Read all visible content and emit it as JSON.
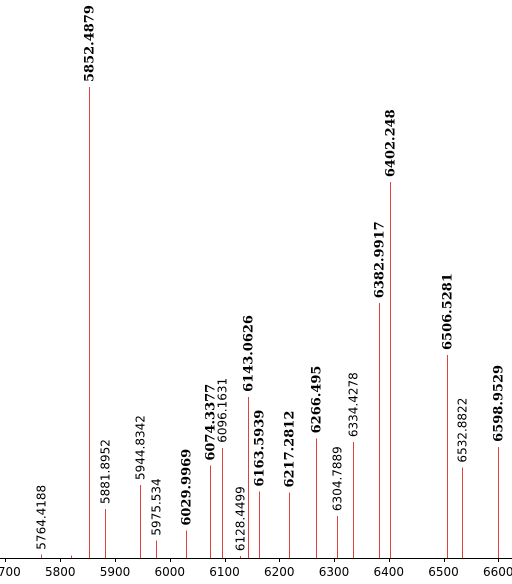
{
  "chart_data": {
    "type": "bar",
    "title": "",
    "xlabel": "",
    "ylabel": "",
    "xlim": [
      5690,
      6625
    ],
    "ylim": [
      0,
      1.0
    ],
    "x_ticks": [
      5700,
      5800,
      5900,
      6000,
      6100,
      6200,
      6300,
      6400,
      6500,
      6600
    ],
    "grid": false,
    "peaks": [
      {
        "x": 5764.4188,
        "label": "5764.4188",
        "y": 0.007,
        "bold": false
      },
      {
        "x": 5820.0,
        "label": "",
        "y": 0.005,
        "bold": false
      },
      {
        "x": 5852.4879,
        "label": "5852.4879",
        "y": 1.0,
        "bold": true
      },
      {
        "x": 5881.8952,
        "label": "5881.8952",
        "y": 0.104,
        "bold": false
      },
      {
        "x": 5944.8342,
        "label": "5944.8342",
        "y": 0.155,
        "bold": false
      },
      {
        "x": 5975.534,
        "label": "5975.534",
        "y": 0.037,
        "bold": false
      },
      {
        "x": 6029.9969,
        "label": "6029.9969",
        "y": 0.058,
        "bold": true
      },
      {
        "x": 6074.3377,
        "label": "6074.3377",
        "y": 0.196,
        "bold": true
      },
      {
        "x": 6096.1631,
        "label": "6096.1631",
        "y": 0.234,
        "bold": false
      },
      {
        "x": 6128.4499,
        "label": "6128.4499",
        "y": 0.004,
        "bold": false
      },
      {
        "x": 6143.0626,
        "label": "6143.0626",
        "y": 0.342,
        "bold": true
      },
      {
        "x": 6163.5939,
        "label": "6163.5939",
        "y": 0.141,
        "bold": true
      },
      {
        "x": 6217.2812,
        "label": "6217.2812",
        "y": 0.139,
        "bold": true
      },
      {
        "x": 6266.495,
        "label": "6266.495",
        "y": 0.254,
        "bold": true
      },
      {
        "x": 6304.7889,
        "label": "6304.7889",
        "y": 0.089,
        "bold": false
      },
      {
        "x": 6334.4278,
        "label": "6334.4278",
        "y": 0.246,
        "bold": false
      },
      {
        "x": 6382.9917,
        "label": "6382.9917",
        "y": 0.541,
        "bold": true
      },
      {
        "x": 6402.248,
        "label": "6402.248",
        "y": 0.798,
        "bold": true
      },
      {
        "x": 6506.5281,
        "label": "6506.5281",
        "y": 0.431,
        "bold": true
      },
      {
        "x": 6532.8822,
        "label": "6532.8822",
        "y": 0.192,
        "bold": false
      },
      {
        "x": 6598.9529,
        "label": "6598.9529",
        "y": 0.236,
        "bold": true
      }
    ]
  }
}
